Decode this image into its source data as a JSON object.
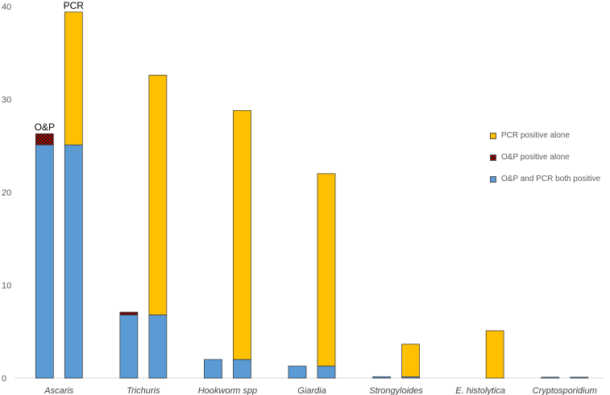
{
  "chart_data": {
    "type": "bar",
    "stacked": true,
    "grouped_pairs": true,
    "categories": [
      "Ascaris",
      "Trichuris",
      "Hookworm spp",
      "Giardia",
      "Strongyloides",
      "E. histolytica",
      "Cryptosporidium"
    ],
    "bar_labels": [
      "O&P",
      "PCR"
    ],
    "ylim": [
      0,
      40
    ],
    "yticks": [
      0,
      10,
      20,
      30,
      40
    ],
    "grid": false,
    "legend_position": "right",
    "series": [
      {
        "name": "O&P and PCR both positive",
        "color": "#5b9bd5",
        "pattern": "solid",
        "op_values": [
          25.1,
          6.8,
          2.0,
          1.3,
          0.15,
          0,
          0.1
        ],
        "pcr_values": [
          25.1,
          6.8,
          2.0,
          1.3,
          0.15,
          0,
          0.1
        ]
      },
      {
        "name": "O&P positive alone",
        "color": "#c00000",
        "pattern": "checker",
        "op_values": [
          1.2,
          0.3,
          0,
          0,
          0,
          0,
          0
        ],
        "pcr_values": [
          0,
          0,
          0,
          0,
          0,
          0,
          0
        ]
      },
      {
        "name": "PCR positive alone",
        "color": "#ffc000",
        "pattern": "solid",
        "op_values": [
          0,
          0,
          0,
          0,
          0,
          0,
          0
        ],
        "pcr_values": [
          14.3,
          25.8,
          26.8,
          20.7,
          3.5,
          5.1,
          0
        ]
      }
    ]
  },
  "legend_order": [
    2,
    1,
    0
  ]
}
